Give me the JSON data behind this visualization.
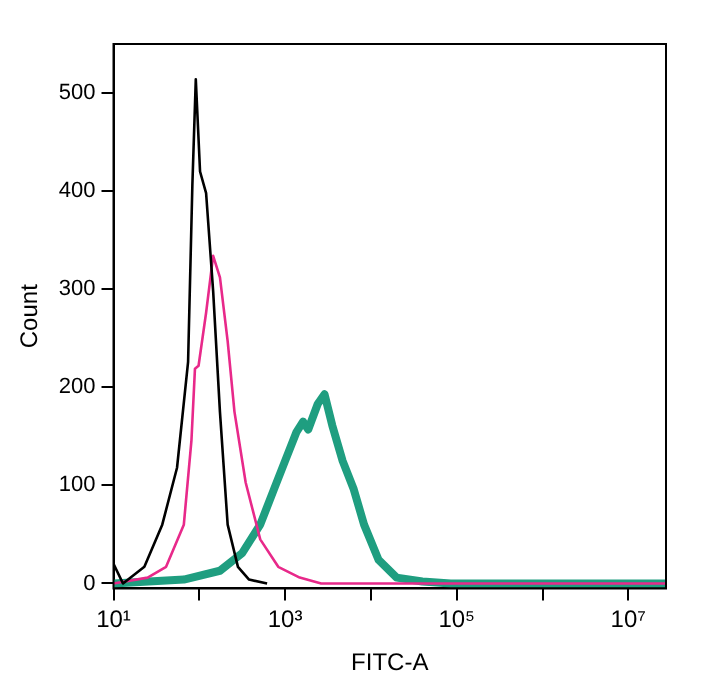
{
  "chart_data": {
    "type": "line",
    "xlabel": "FITC-A",
    "ylabel": "Count",
    "log": "x",
    "grid": false,
    "legend": false,
    "marker": "none",
    "line_style": "solid",
    "xlim": [
      10,
      27500000
    ],
    "ylim": [
      -5,
      550
    ],
    "xticks": [
      {
        "value": 10,
        "label": "10¹"
      },
      {
        "value": 100,
        "label": null
      },
      {
        "value": 1000,
        "label": "10³"
      },
      {
        "value": 10000,
        "label": null
      },
      {
        "value": 100000,
        "label": "10⁵"
      },
      {
        "value": 1000000,
        "label": null
      },
      {
        "value": 10000000,
        "label": "10⁷"
      }
    ],
    "yticks": [
      0,
      100,
      200,
      300,
      400,
      500
    ],
    "series": [
      {
        "color": "#000000",
        "x": [
          10,
          12.9,
          22.9,
          37,
          55,
          74,
          83,
          91,
          102,
          120,
          145,
          174,
          214,
          282,
          380,
          617
        ],
        "values": [
          20,
          0,
          17,
          60,
          118,
          226,
          406,
          514,
          420,
          398,
          298,
          175,
          60,
          17,
          4,
          0
        ]
      },
      {
        "color": "#e8298a",
        "x": [
          10,
          25,
          41,
          66,
          81,
          89,
          98,
          120,
          145,
          174,
          214,
          257,
          347,
          513,
          832,
          1480,
          2630,
          27500000
        ],
        "values": [
          0,
          6,
          17,
          60,
          146,
          219,
          222,
          276,
          334,
          312,
          247,
          175,
          103,
          45,
          17,
          6,
          0,
          0
        ]
      },
      {
        "color": "#1f9e80",
        "x": [
          10,
          66,
          174,
          316,
          513,
          741,
          1000,
          1350,
          1620,
          1860,
          2400,
          2880,
          3550,
          4680,
          6310,
          8320,
          12300,
          19950,
          39800,
          85100,
          27500000
        ],
        "values": [
          0,
          4,
          13,
          31,
          60,
          96,
          125,
          154,
          165,
          157,
          183,
          193,
          161,
          125,
          96,
          60,
          24,
          6,
          2,
          0,
          0
        ]
      }
    ]
  }
}
